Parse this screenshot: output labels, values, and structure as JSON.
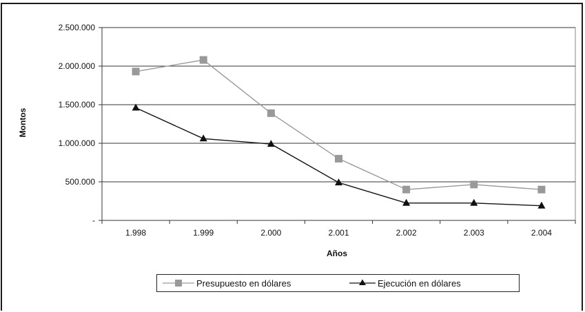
{
  "chart_data": {
    "type": "line",
    "categories": [
      "1.998",
      "1.999",
      "2.000",
      "2.001",
      "2.002",
      "2.003",
      "2.004"
    ],
    "series": [
      {
        "name": "Presupuesto en dólares",
        "values": [
          1930000,
          2080000,
          1390000,
          800000,
          400000,
          465000,
          400000
        ],
        "color": "#999999",
        "marker": "square"
      },
      {
        "name": "Ejecución en dólares",
        "values": [
          1460000,
          1060000,
          990000,
          490000,
          225000,
          225000,
          190000
        ],
        "color": "#111111",
        "marker": "triangle"
      }
    ],
    "xlabel": "Años",
    "ylabel": "Montos",
    "ylim": [
      0,
      2500000
    ],
    "yticks": [
      {
        "value": 0,
        "label": "-"
      },
      {
        "value": 500000,
        "label": "500.000"
      },
      {
        "value": 1000000,
        "label": "1.000.000"
      },
      {
        "value": 1500000,
        "label": "1.500.000"
      },
      {
        "value": 2000000,
        "label": "2.000.000"
      },
      {
        "value": 2500000,
        "label": "2.500.000"
      }
    ],
    "grid": true,
    "legend_position": "bottom"
  }
}
